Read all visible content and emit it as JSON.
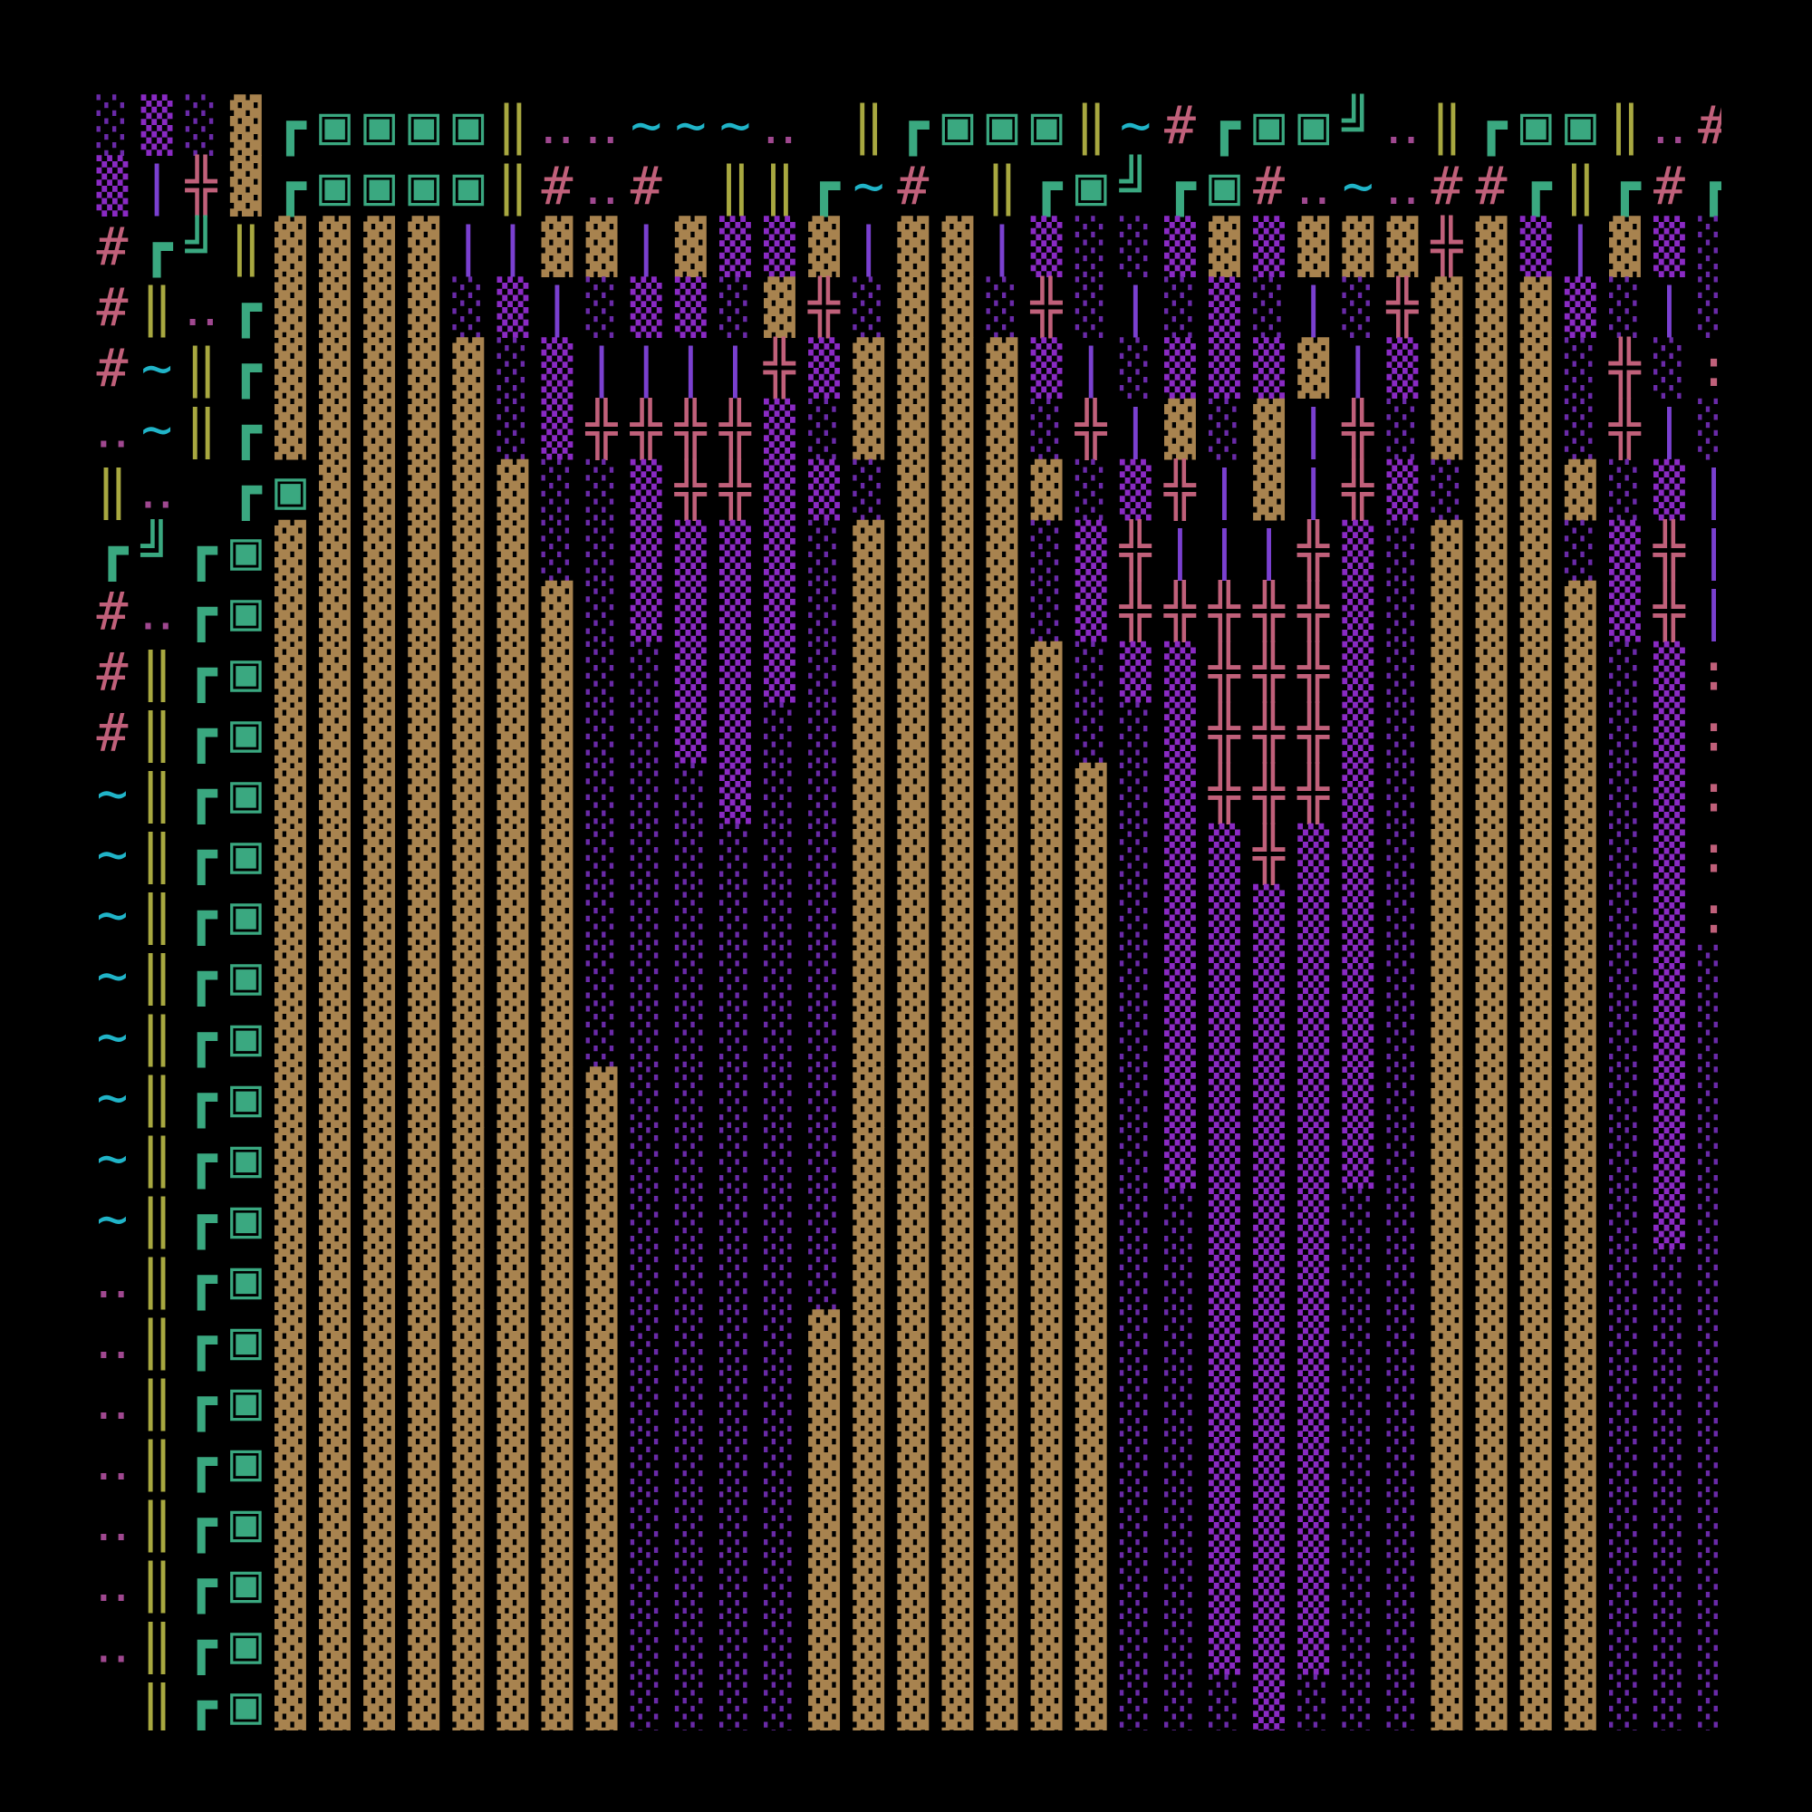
{
  "map": {
    "rows": [
      "░▒░▓┏▣▣▣▣‖‥‥~~~‥ ‖┏▣▣▣‖~#┏▣▣╝‥‖┏▣▣‖‥#",
      "▒|╬▓┏▣▣▣▣‖#‥# ‖‖┏~# ‖┏▣╝┏▣#‥~‥##┏‖┏#┏",
      "#┏╝‖▓▓▓▓||▓▓|▓▒▒▓|▓▓|▒░░▒▓▒▓▓▓╬▓▒|▓▒░",
      "#‖‥┏▓▓▓▓░▒|░▒▒░▓╬░▓▓░╬░|░▒░|░╬▓▓▓▒░|░",
      "#~‖┏▓▓▓▓▓░▒||||╬▒▓▓▓▓▒|░▒▒▒▓|▒▓▓▓░╬░:",
      "‥~‖┏▓▓▓▓▓░▒╬╬╬╬▒░▓▓▓▓░╬|▓░▓|╬░▓▓▓░╬|░",
      "‖‥ ┏▣▓▓▓▓▓░░▒╬╬▒▒░▓▓▓▓░▒╬|▓|╬▒░▓▓▓░▒|",
      "┏╝┏▣▓▓▓▓▓▓░░▒▒▒▒░▓▓▓▓░▒╬|||╬▒░▓▓▓░▒╬|",
      "#‥┏▣▓▓▓▓▓▓▓░▒▒▒▒░▓▓▓▓░▒╬╬╬╬╬▒░▓▓▓▓▒╬|",
      "#‖┏▣▓▓▓▓▓▓▓░░▒▒▒░▓▓▓▓▓░▒▒╬╬╬▒░▓▓▓▓░▒:",
      "#‖┏▣▓▓▓▓▓▓▓░░▒▒░░▓▓▓▓▓░░▒╬╬╬▒░▓▓▓▓░▒:",
      "~‖┏▣▓▓▓▓▓▓▓░░░▒░░▓▓▓▓▓▓░▒╬╬╬▒░▓▓▓▓░▒:",
      "~‖┏▣▓▓▓▓▓▓▓░░░░░░▓▓▓▓▓▓░▒▒╬▒▒░▓▓▓▓░▒:",
      "~‖┏▣▓▓▓▓▓▓▓░░░░░░▓▓▓▓▓▓░▒▒▒▒▒░▓▓▓▓░▒:",
      "~‖┏▣▓▓▓▓▓▓▓░░░░░░▓▓▓▓▓▓░▒▒▒▒▒░▓▓▓▓░▒░",
      "~‖┏▣▓▓▓▓▓▓▓░░░░░░▓▓▓▓▓▓░▒▒▒▒▒░▓▓▓▓░▒░",
      "~‖┏▣▓▓▓▓▓▓▓▓░░░░░▓▓▓▓▓▓░▒▒▒▒▒░▓▓▓▓░▒░",
      "~‖┏▣▓▓▓▓▓▓▓▓░░░░░▓▓▓▓▓▓░▒▒▒▒▒░▓▓▓▓░▒░",
      "~‖┏▣▓▓▓▓▓▓▓▓░░░░░▓▓▓▓▓▓░░▒▒▒░░▓▓▓▓░▒░",
      "‥‖┏▣▓▓▓▓▓▓▓▓░░░░░▓▓▓▓▓▓░░▒▒▒░░▓▓▓▓░░░",
      "‥‖┏▣▓▓▓▓▓▓▓▓░░░░▓▓▓▓▓▓▓░░▒▒▒░░▓▓▓▓░░░",
      "‥‖┏▣▓▓▓▓▓▓▓▓░░░░▓▓▓▓▓▓▓░░▒▒▒░░▓▓▓▓░░░",
      "‥‖┏▣▓▓▓▓▓▓▓▓░░░░▓▓▓▓▓▓▓░░▒▒▒░░▓▓▓▓░░░",
      "‥‖┏▣▓▓▓▓▓▓▓▓░░░░▓▓▓▓▓▓▓░░▒▒▒░░▓▓▓▓░░░",
      "‥‖┏▣▓▓▓▓▓▓▓▓░░░░▓▓▓▓▓▓▓░░▒▒▒░░▓▓▓▓░░░",
      "‥‖┏▣▓▓▓▓▓▓▓▓░░░░▓▓▓▓▓▓▓░░▒▒▒░░▓▓▓▓░░░",
      " ‖┏▣▓▓▓▓▓▓▓▓░░░░▓▓▓▓▓▓▓░░░▒░░░▓▓▓▓░░░"
    ],
    "palette": {
      "▓": "#a8834f",
      "░": "#6a2aa8",
      "▒": "#8a2ac4",
      "#": "#c0607a",
      "╬": "#c0607a",
      "‖": "#a8a840",
      "┏": "#3aa880",
      "▣": "#3aa880",
      "╝": "#3aa880",
      "|": "#7a40d0",
      "~": "#20b4c8",
      "‥": "#a04890",
      ":": "#c0607a"
    }
  }
}
